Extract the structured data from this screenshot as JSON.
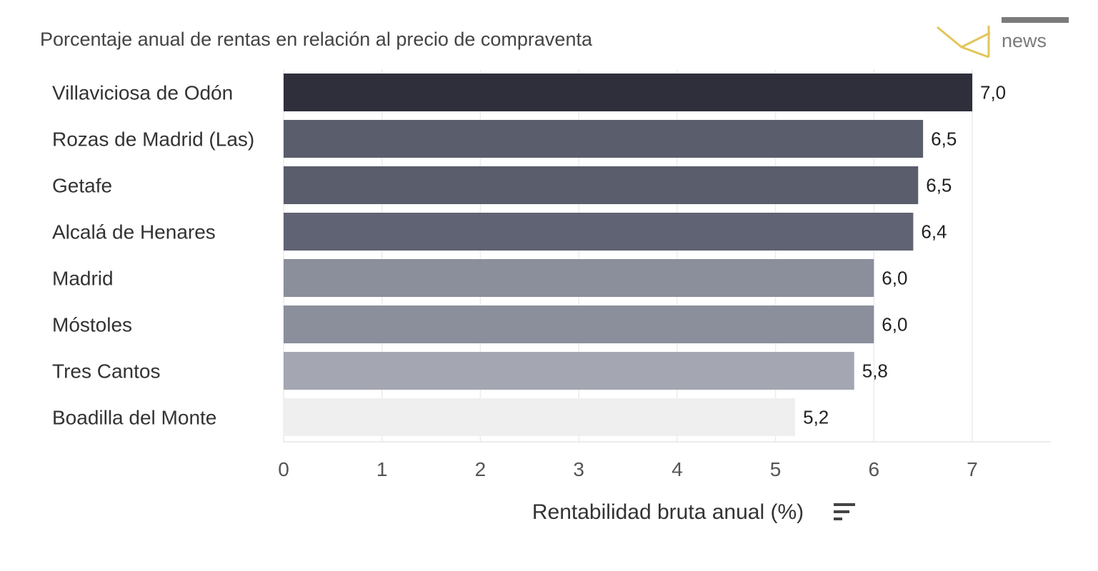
{
  "chart_data": {
    "type": "bar",
    "orientation": "horizontal",
    "subtitle": "Porcentaje anual de rentas en relación al precio de compraventa",
    "categories": [
      "Villaviciosa de Odón",
      "Rozas de Madrid (Las)",
      "Getafe",
      "Alcalá de Henares",
      "Madrid",
      "Móstoles",
      "Tres Cantos",
      "Boadilla del Monte"
    ],
    "values": [
      7.0,
      6.5,
      6.45,
      6.4,
      6.0,
      6.0,
      5.8,
      5.2
    ],
    "value_labels": [
      "7,0",
      "6,5",
      "6,5",
      "6,4",
      "6,0",
      "6,0",
      "5,8",
      "5,2"
    ],
    "bar_colors": [
      "#2e2f3b",
      "#5a5d6c",
      "#5a5d6c",
      "#5f6373",
      "#8b8f9c",
      "#8b8f9c",
      "#a4a7b2",
      "#efefef"
    ],
    "xlabel": "Rentabilidad bruta anual (%)",
    "xticks": [
      "0",
      "1",
      "2",
      "3",
      "4",
      "5",
      "6",
      "7"
    ],
    "xlim": [
      0,
      7.8
    ],
    "grid": true,
    "sort_icon": "sort-icon"
  },
  "brand": {
    "logo_icon": "logo-mark-icon",
    "name": "news"
  }
}
